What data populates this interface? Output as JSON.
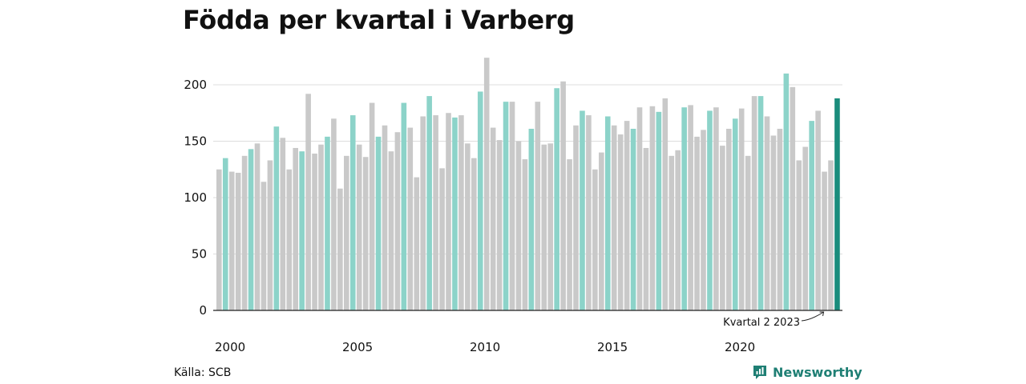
{
  "title": "Födda per kvartal i Varberg",
  "source": "Källa: SCB",
  "brand": {
    "name": "Newsworthy",
    "icon": "chart-logo-icon"
  },
  "colors": {
    "default": "#c9c9c9",
    "q2": "#8cd3c9",
    "highlight": "#1a8c7c",
    "grid": "#dddddd",
    "text": "#111111"
  },
  "chart_data": {
    "type": "bar",
    "title": "Födda per kvartal i Varberg",
    "xlabel": "",
    "ylabel": "",
    "ylim": [
      0,
      230
    ],
    "yticks": [
      0,
      50,
      100,
      150,
      200
    ],
    "xtick_labels": [
      "2000",
      "2005",
      "2010",
      "2015",
      "2020"
    ],
    "start_year": 2000,
    "grid": true,
    "annotation": {
      "text": "Kvartal 2 2023"
    },
    "series": [
      {
        "values": [
          125,
          135,
          123,
          122,
          137,
          143,
          148,
          114,
          133,
          163,
          153,
          125,
          144,
          141,
          192,
          139,
          147,
          154,
          170,
          108,
          137,
          173,
          147,
          136,
          184,
          154,
          164,
          141,
          158,
          184,
          162,
          118,
          172,
          190,
          173,
          126,
          175,
          171,
          173,
          148,
          135,
          194,
          224,
          162,
          151,
          185,
          185,
          150,
          134,
          161,
          185,
          147,
          148,
          197,
          203,
          134,
          164,
          177,
          173,
          125,
          140,
          172,
          164,
          156,
          168,
          161,
          180,
          144,
          181,
          176,
          188,
          137,
          142,
          180,
          182,
          154,
          160,
          177,
          180,
          146,
          161,
          170,
          179,
          137,
          190,
          190,
          172,
          155,
          161,
          210,
          198,
          133,
          145,
          168,
          177,
          123,
          133,
          188
        ]
      }
    ]
  }
}
